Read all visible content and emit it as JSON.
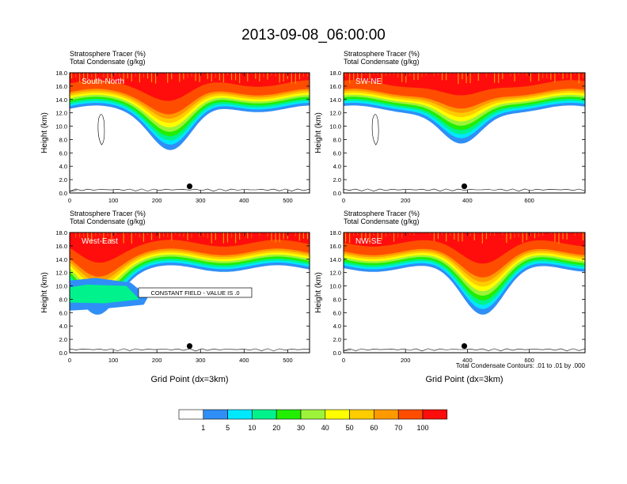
{
  "figure": {
    "title": "2013-09-08_06:00:00",
    "contour_note": "Total Condensate Contours: .01 to .01 by .000",
    "constant_field_label": "CONSTANT FIELD - VALUE IS .0"
  },
  "colorbar": {
    "levels": [
      "1",
      "5",
      "10",
      "20",
      "30",
      "40",
      "50",
      "60",
      "70",
      "100"
    ],
    "colors": [
      "#ffffff",
      "#2f8ff7",
      "#00e8ff",
      "#00f28c",
      "#22ee00",
      "#9df33a",
      "#ffff00",
      "#ffcc00",
      "#ff9900",
      "#ff4d00",
      "#ff0d0d"
    ]
  },
  "chart_data": [
    {
      "type": "contour",
      "panel": "South-North",
      "title_lines": [
        "Stratosphere Tracer   (%)",
        "Total Condensate   (g/kg)"
      ],
      "ylabel": "Height (km)",
      "xlabel": "",
      "xlim": [
        0,
        550
      ],
      "ylim": [
        0,
        18
      ],
      "x_ticks": [
        0,
        100,
        200,
        300,
        400,
        500
      ],
      "y_ticks": [
        "0.0",
        "2.0",
        "4.0",
        "6.0",
        "8.0",
        "10.0",
        "12.0",
        "14.0",
        "16.0",
        "18.0"
      ],
      "marker": {
        "x": 275,
        "y": 1.0
      },
      "trough_center_x": 235,
      "trough_depth_km": 7.2
    },
    {
      "type": "contour",
      "panel": "SW-NE",
      "title_lines": [
        "Stratosphere Tracer   (%)",
        "Total Condensate   (g/kg)"
      ],
      "ylabel": "Height (km)",
      "xlabel": "",
      "xlim": [
        0,
        780
      ],
      "ylim": [
        0,
        18
      ],
      "x_ticks": [
        0,
        200,
        400,
        600
      ],
      "y_ticks": [
        "0.0",
        "2.0",
        "4.0",
        "6.0",
        "8.0",
        "10.0",
        "12.0",
        "14.0",
        "16.0",
        "18.0"
      ],
      "marker": {
        "x": 390,
        "y": 1.0
      },
      "trough_center_x": 380,
      "trough_depth_km": 7.5
    },
    {
      "type": "contour",
      "panel": "West-East",
      "title_lines": [
        "Stratosphere Tracer   (%)",
        "Total Condensate   (g/kg)"
      ],
      "ylabel": "Height (km)",
      "xlabel": "Grid Point (dx=3km)",
      "xlim": [
        0,
        550
      ],
      "ylim": [
        0,
        18
      ],
      "x_ticks": [
        0,
        100,
        200,
        300,
        400,
        500
      ],
      "y_ticks": [
        "0.0",
        "2.0",
        "4.0",
        "6.0",
        "8.0",
        "10.0",
        "12.0",
        "14.0",
        "16.0",
        "18.0"
      ],
      "marker": {
        "x": 275,
        "y": 1.0
      },
      "trough_center_x": 60,
      "trough_depth_km": 6.5
    },
    {
      "type": "contour",
      "panel": "NW-SE",
      "title_lines": [
        "Stratosphere Tracer   (%)",
        "Total Condensate   (g/kg)"
      ],
      "ylabel": "Height (km)",
      "xlabel": "Grid Point (dx=3km)",
      "xlim": [
        0,
        780
      ],
      "ylim": [
        0,
        18
      ],
      "x_ticks": [
        0,
        200,
        400,
        600
      ],
      "y_ticks": [
        "0.0",
        "2.0",
        "4.0",
        "6.0",
        "8.0",
        "10.0",
        "12.0",
        "14.0",
        "16.0",
        "18.0"
      ],
      "marker": {
        "x": 390,
        "y": 1.0
      },
      "trough_center_x": 450,
      "trough_depth_km": 6.8
    }
  ]
}
